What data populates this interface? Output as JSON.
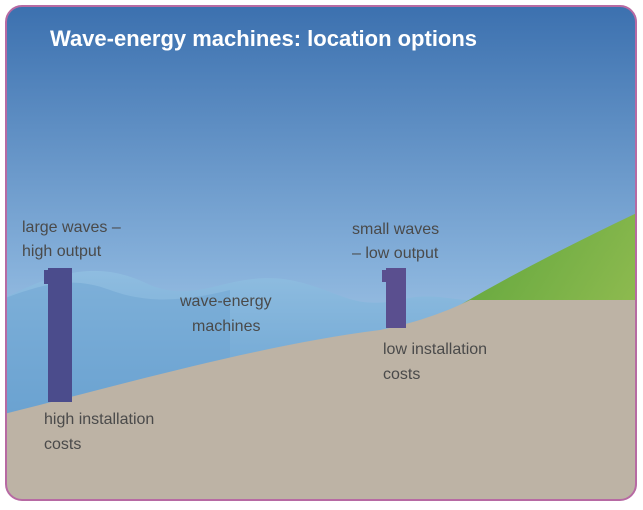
{
  "title": "Wave-energy machines: location options",
  "annotations": [
    {
      "lines": [
        "large waves –",
        "high output"
      ]
    },
    {
      "lines": [
        "wave-energy",
        "machines"
      ]
    },
    {
      "lines": [
        "small waves",
        "– low output"
      ]
    },
    {
      "lines": [
        "low installation",
        "costs"
      ]
    },
    {
      "lines": [
        "high installation",
        "costs"
      ]
    }
  ]
}
